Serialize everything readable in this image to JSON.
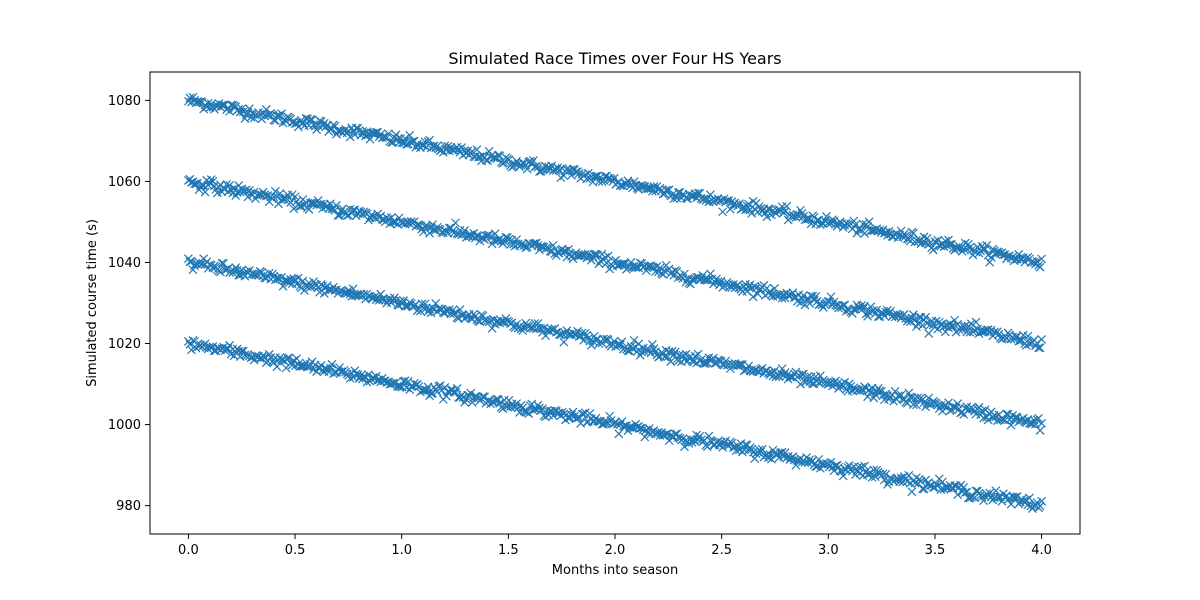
{
  "chart_data": {
    "type": "scatter",
    "title": "Simulated Race Times over Four HS Years",
    "xlabel": "Months into season",
    "ylabel": "Simulated course time (s)",
    "xlim": [
      -0.18,
      4.18
    ],
    "ylim": [
      973,
      1087
    ],
    "xticks": [
      0.0,
      0.5,
      1.0,
      1.5,
      2.0,
      2.5,
      3.0,
      3.5,
      4.0
    ],
    "xtick_labels": [
      "0.0",
      "0.5",
      "1.0",
      "1.5",
      "2.0",
      "2.5",
      "3.0",
      "3.5",
      "4.0"
    ],
    "yticks": [
      980,
      1000,
      1020,
      1040,
      1060,
      1080
    ],
    "ytick_labels": [
      "980",
      "1000",
      "1020",
      "1040",
      "1060",
      "1080"
    ],
    "grid": false,
    "marker": "x",
    "color": "#1f77b4",
    "series": [
      {
        "x": [
          0.0,
          0.25,
          0.5,
          0.75,
          1.0,
          1.25,
          1.5,
          1.75,
          2.0,
          2.25,
          2.5,
          2.75,
          3.0,
          3.25,
          3.5,
          3.75,
          4.0
        ],
        "values": [
          1080,
          1077.5,
          1075,
          1072.5,
          1070,
          1067.5,
          1065,
          1062.5,
          1060,
          1057.5,
          1055,
          1052.5,
          1050,
          1047.5,
          1045,
          1042.5,
          1040
        ]
      },
      {
        "x": [
          0.0,
          0.25,
          0.5,
          0.75,
          1.0,
          1.25,
          1.5,
          1.75,
          2.0,
          2.25,
          2.5,
          2.75,
          3.0,
          3.25,
          3.5,
          3.75,
          4.0
        ],
        "values": [
          1060,
          1057.5,
          1055,
          1052.5,
          1050,
          1047.5,
          1045,
          1042.5,
          1040,
          1037.5,
          1035,
          1032.5,
          1030,
          1027.5,
          1025,
          1022.5,
          1020
        ]
      },
      {
        "x": [
          0.0,
          0.25,
          0.5,
          0.75,
          1.0,
          1.25,
          1.5,
          1.75,
          2.0,
          2.25,
          2.5,
          2.75,
          3.0,
          3.25,
          3.5,
          3.75,
          4.0
        ],
        "values": [
          1040,
          1037.5,
          1035,
          1032.5,
          1030,
          1027.5,
          1025,
          1022.5,
          1020,
          1017.5,
          1015,
          1012.5,
          1010,
          1007.5,
          1005,
          1002.5,
          1000
        ]
      },
      {
        "x": [
          0.0,
          0.25,
          0.5,
          0.75,
          1.0,
          1.25,
          1.5,
          1.75,
          2.0,
          2.25,
          2.5,
          2.75,
          3.0,
          3.25,
          3.5,
          3.75,
          4.0
        ],
        "values": [
          1020,
          1017.5,
          1015,
          1012.5,
          1010,
          1007.5,
          1005,
          1002.5,
          1000,
          997.5,
          995,
          992.5,
          990,
          987.5,
          985,
          982.5,
          980
        ]
      }
    ]
  }
}
